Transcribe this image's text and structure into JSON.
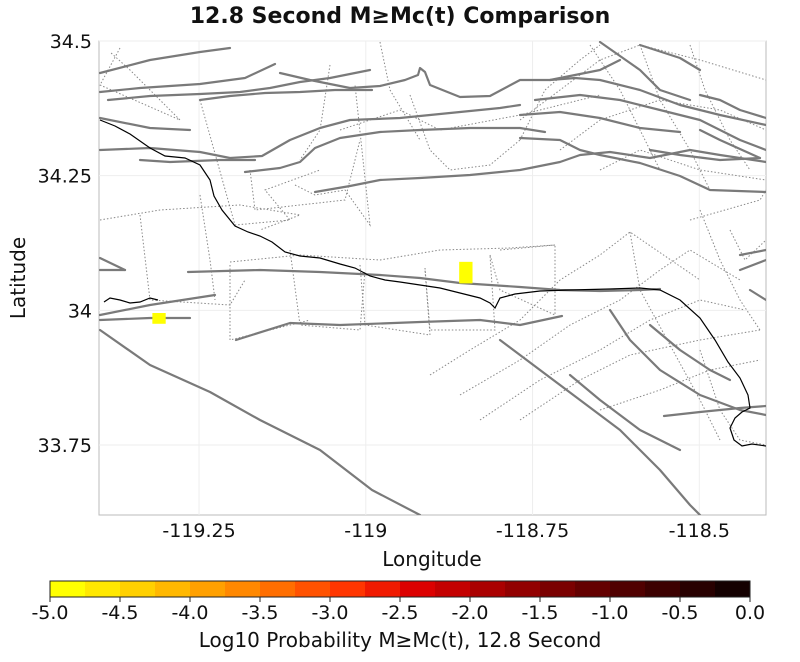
{
  "title": "12.8 Second M≥Mc(t) Comparison",
  "map": {
    "lon_range": [
      -119.4,
      -118.4
    ],
    "lat_range": [
      33.62,
      34.5
    ],
    "x_axis_label": "Longitude",
    "y_axis_label": "Latitude",
    "x_ticks": [
      {
        "value": -119.25,
        "label": "-119.25"
      },
      {
        "value": -119.0,
        "label": "-119"
      },
      {
        "value": -118.75,
        "label": "-118.75"
      },
      {
        "value": -118.5,
        "label": "-118.5"
      }
    ],
    "y_ticks": [
      {
        "value": 34.5,
        "label": "34.5"
      },
      {
        "value": 34.25,
        "label": "34.25"
      },
      {
        "value": 34.0,
        "label": "34"
      },
      {
        "value": 33.75,
        "label": "33.75"
      }
    ],
    "grid": true,
    "coastline_color": "#000000",
    "fault_color": "#7a7a7a",
    "highlight_color": "#ffff00",
    "highlight_cells": [
      {
        "lon_min": -118.86,
        "lon_max": -118.84,
        "lat_min": 34.05,
        "lat_max": 34.09
      },
      {
        "lon_min": -119.32,
        "lon_max": -119.3,
        "lat_min": 33.975,
        "lat_max": 33.995
      }
    ]
  },
  "colorbar": {
    "min": -5.0,
    "max": 0.0,
    "tick_labels": [
      "-5.0",
      "-4.5",
      "-4.0",
      "-3.5",
      "-3.0",
      "-2.5",
      "-2.0",
      "-1.5",
      "-1.0",
      "-0.5",
      "0.0"
    ],
    "label": "Log10 Probability M≥Mc(t), 12.8 Second",
    "colors": [
      "#ffff00",
      "#ffe800",
      "#ffd000",
      "#ffb800",
      "#ffa000",
      "#ff8800",
      "#ff6e00",
      "#ff5200",
      "#ff3600",
      "#f01a00",
      "#dc0000",
      "#c40000",
      "#aa0000",
      "#920000",
      "#7a0000",
      "#640000",
      "#500000",
      "#3c0000",
      "#280000",
      "#140000"
    ]
  }
}
